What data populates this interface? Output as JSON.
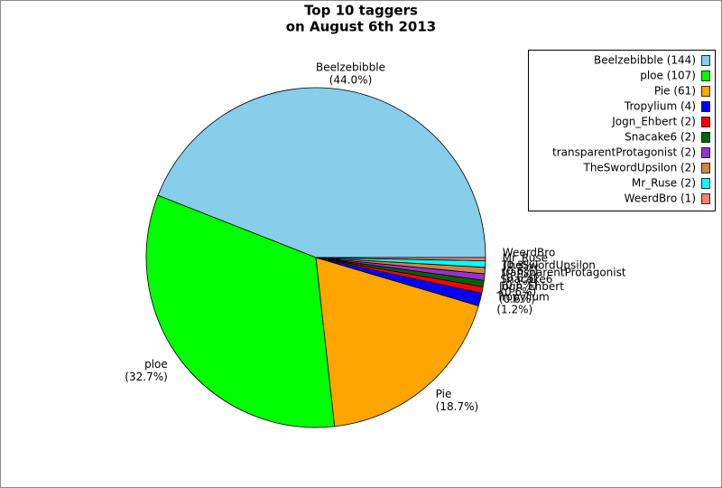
{
  "chart_data": {
    "type": "pie",
    "title": [
      "Top 10 taggers",
      "on August 6th 2013"
    ],
    "categories": [
      "Beelzebibble",
      "ploe",
      "Pie",
      "Tropylium",
      "Jogn_Ehbert",
      "Snacake6",
      "transparentProtagonist",
      "TheSwordUpsilon",
      "Mr_Ruse",
      "WeerdBro"
    ],
    "values": [
      144,
      107,
      61,
      4,
      2,
      2,
      2,
      2,
      2,
      1
    ],
    "value_labels": [
      "(44.0%)",
      "(32.7%)",
      "(18.7%)",
      "(1.2%)",
      "(0.6%)",
      "(0.6%)",
      "(0.6%)",
      "(0.6%)",
      "(0.6%)",
      "(0.3%)"
    ],
    "legend": [
      "Beelzebibble (144)",
      "ploe (107)",
      "Pie (61)",
      "Tropylium (4)",
      "Jogn_Ehbert (2)",
      "Snacake6 (2)",
      "transparentProtagonist (2)",
      "TheSwordUpsilon (2)",
      "Mr_Ruse (2)",
      "WeerdBro (1)"
    ],
    "colors": [
      "#87ceeb",
      "#00ff00",
      "#ffa500",
      "#0000ff",
      "#ff0000",
      "#006400",
      "#9932cc",
      "#cd853f",
      "#00ffff",
      "#fa8072"
    ],
    "legend_position": "upper right"
  }
}
